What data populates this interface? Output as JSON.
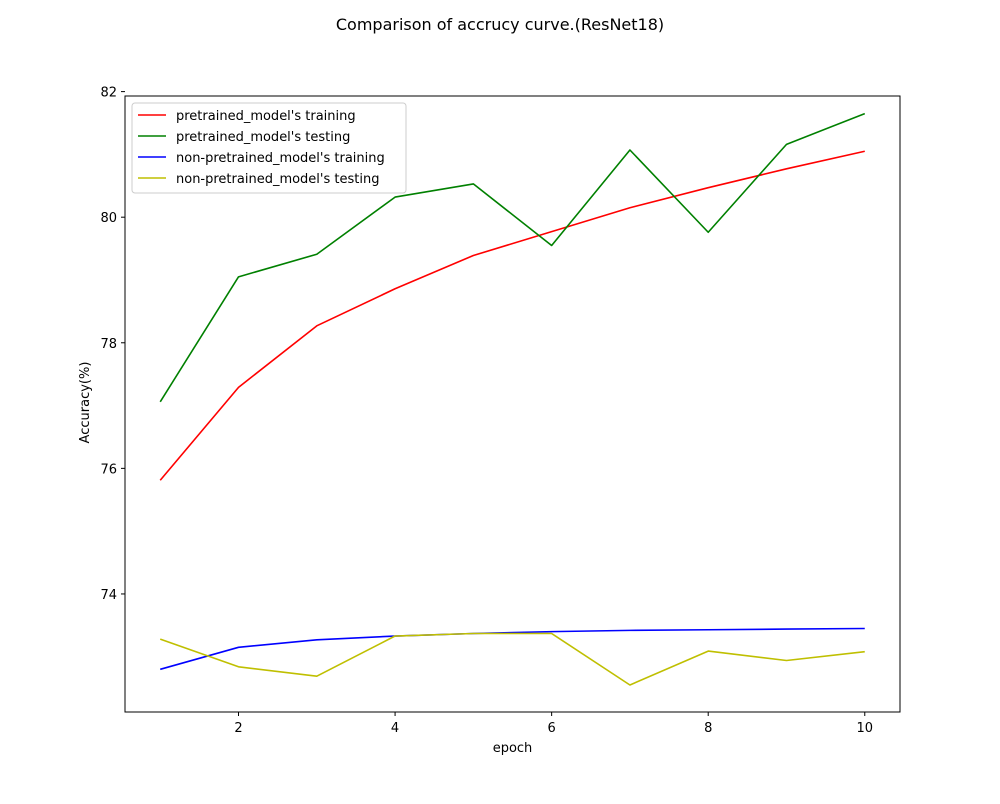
{
  "chart_data": {
    "type": "line",
    "title": "Comparison of accrucy curve.(ResNet18)",
    "xlabel": "epoch",
    "ylabel": "Accuracy(%)",
    "x": [
      1,
      2,
      3,
      4,
      5,
      6,
      7,
      8,
      9,
      10
    ],
    "xlim": [
      0.55,
      10.45
    ],
    "ylim": [
      72.12,
      81.93
    ],
    "xticks": [
      2,
      4,
      6,
      8,
      10
    ],
    "yticks": [
      74,
      76,
      78,
      80,
      82
    ],
    "grid": false,
    "legend_position": "upper-left",
    "series": [
      {
        "name": "pretrained_model's training",
        "color": "#ff0000",
        "values": [
          75.81,
          77.29,
          78.27,
          78.86,
          79.39,
          79.77,
          80.15,
          80.47,
          80.77,
          81.05
        ]
      },
      {
        "name": "pretrained_model's testing",
        "color": "#008000",
        "values": [
          77.06,
          79.05,
          79.41,
          80.32,
          80.53,
          79.55,
          81.07,
          79.76,
          81.16,
          81.65
        ]
      },
      {
        "name": "non-pretrained_model's training",
        "color": "#0000ff",
        "values": [
          72.8,
          73.15,
          73.27,
          73.33,
          73.37,
          73.4,
          73.42,
          73.43,
          73.44,
          73.45
        ]
      },
      {
        "name": "non-pretrained_model's testing",
        "color": "#bfbf00",
        "values": [
          73.28,
          72.84,
          72.69,
          73.33,
          73.37,
          73.37,
          72.55,
          73.09,
          72.94,
          73.08
        ]
      }
    ]
  }
}
